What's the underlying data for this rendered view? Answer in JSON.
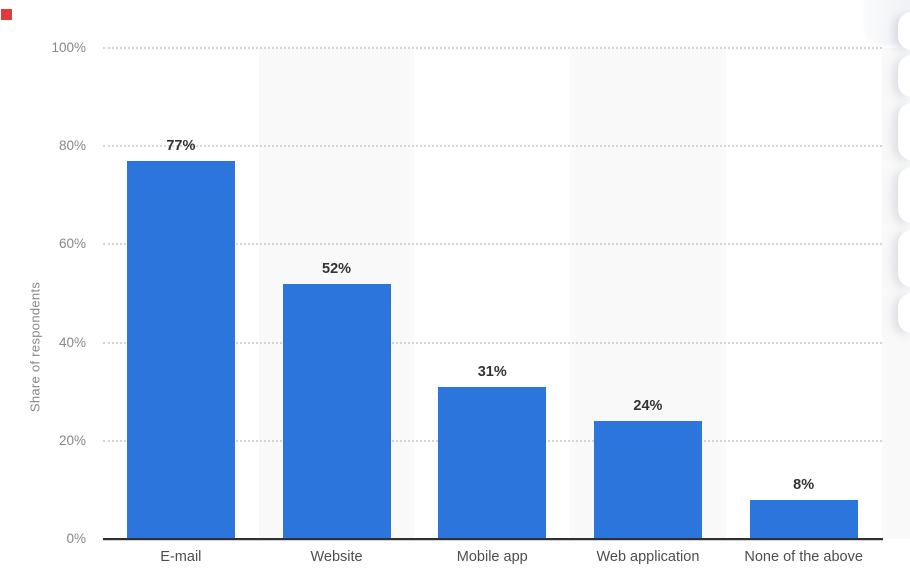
{
  "chart_data": {
    "type": "bar",
    "title": "",
    "categories": [
      "E-mail",
      "Website",
      "Mobile app",
      "Web application",
      "None of the above"
    ],
    "values": [
      77,
      52,
      31,
      24,
      8
    ],
    "data_labels": [
      "77%",
      "52%",
      "31%",
      "24%",
      "8%"
    ],
    "xlabel": "",
    "ylabel": "Share of respondents",
    "ylim": [
      0,
      100
    ],
    "ytick_values": [
      0,
      20,
      40,
      60,
      80,
      100
    ],
    "ytick_labels": [
      "0%",
      "20%",
      "40%",
      "60%",
      "80%",
      "100%"
    ],
    "legend": "none",
    "grid": "horizontal-dotted",
    "background_bands": "alternating light-gray vertical column stripes",
    "colors": {
      "bar": "#2b75dc",
      "stripe": "#f9f9f9",
      "gridline": "#d4d4d4",
      "axis_line": "#303030",
      "tick_label": "#878787",
      "axis_title": "#8c8c8c",
      "category_label": "#4e4e4e",
      "data_label": "#333333"
    }
  },
  "decorations": {
    "top_left_marker_color": "#e03a3a",
    "right_edge_buttons": "cut-off stack of rounded white buttons",
    "top_right_panel": "cut-off light gray rounded panel"
  }
}
